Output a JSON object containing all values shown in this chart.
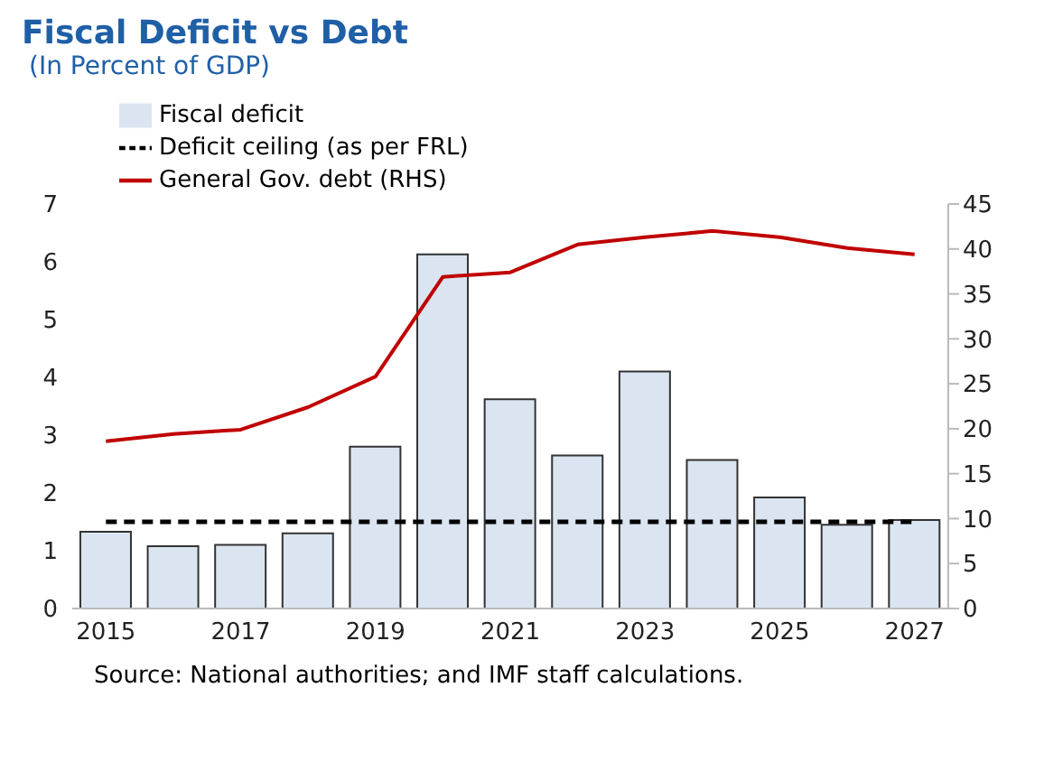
{
  "chart_data": {
    "type": "bar",
    "title": "Fiscal Deficit vs Debt",
    "subtitle": "(In Percent of GDP)",
    "categories": [
      "2015",
      null,
      "2017",
      null,
      "2019",
      null,
      "2021",
      null,
      "2023",
      null,
      "2025",
      null,
      "2027"
    ],
    "series": [
      {
        "name": "Fiscal deficit",
        "color": "#dae5f1",
        "values": [
          1.33,
          1.08,
          1.1,
          1.3,
          2.8,
          6.13,
          3.62,
          2.65,
          4.1,
          2.57,
          1.92,
          1.45,
          1.53
        ]
      },
      {
        "name": "Deficit ceiling (as per FRL)",
        "type": "line",
        "color": "#000000",
        "line_style": "dashed",
        "values": [
          1.5,
          1.5,
          1.5,
          1.5,
          1.5,
          1.5,
          1.5,
          1.5,
          1.5,
          1.5,
          1.5,
          1.5,
          1.5
        ]
      },
      {
        "name": "General Gov. debt (RHS)",
        "type": "line",
        "color": "#c00000",
        "line_style": "solid",
        "axis": "y2",
        "values": [
          18.6,
          19.4,
          19.9,
          22.4,
          25.8,
          36.9,
          37.4,
          40.5,
          41.3,
          42.0,
          41.3,
          40.1,
          39.4
        ]
      }
    ],
    "ylim": [
      0,
      7
    ],
    "yticks": [
      0,
      1,
      2,
      3,
      4,
      5,
      6,
      7
    ],
    "y2lim": [
      0,
      45
    ],
    "y2ticks": [
      0,
      5,
      10,
      15,
      20,
      25,
      30,
      35,
      40,
      45
    ],
    "grid": false,
    "legend": "top left",
    "marker": "none",
    "annotations": [
      "Source: National authorities; and IMF staff calculations."
    ]
  }
}
